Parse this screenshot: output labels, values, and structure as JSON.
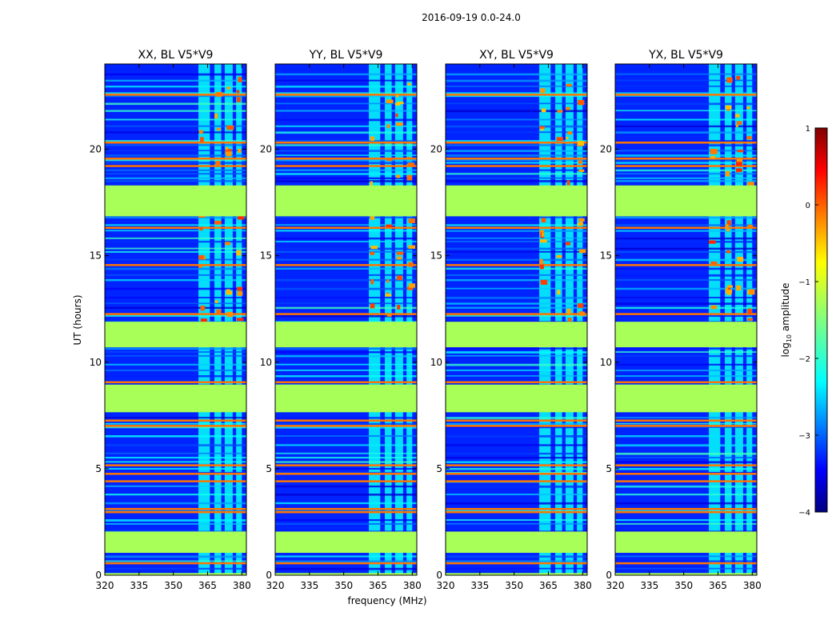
{
  "chart_data": {
    "type": "heatmap",
    "suptitle": "2016-09-19 0.0-24.0",
    "xlabel": "frequency (MHz)",
    "ylabel": "UT (hours)",
    "xlim": [
      320,
      382
    ],
    "ylim": [
      0,
      24
    ],
    "xticks": [
      320,
      335,
      350,
      365,
      380
    ],
    "yticks": [
      0,
      5,
      10,
      15,
      20
    ],
    "panels": [
      {
        "title": "XX, BL V5*V9",
        "pol": "XX"
      },
      {
        "title": "YY, BL V5*V9",
        "pol": "YY"
      },
      {
        "title": "XY, BL V5*V9",
        "pol": "XY"
      },
      {
        "title": "YX, BL V5*V9",
        "pol": "YX"
      }
    ],
    "colorbar": {
      "label": "log10 amplitude",
      "label_main": "log",
      "label_sub": "10",
      "label_tail": " amplitude",
      "range": [
        -4,
        1
      ],
      "ticks": [
        -4,
        -3,
        -2,
        -1,
        0,
        1
      ],
      "tick_labels": [
        "−4",
        "−3",
        "−2",
        "−1",
        "0",
        "1"
      ],
      "colormap": "jet"
    },
    "flagged_time_ranges_hours": [
      [
        0.0,
        0.1
      ],
      [
        1.05,
        2.05
      ],
      [
        7.65,
        8.95
      ],
      [
        10.7,
        11.9
      ],
      [
        16.85,
        18.3
      ]
    ],
    "rfi_frequency_band_mhz": [
      361,
      380
    ],
    "background_log10_amplitude": -3.2,
    "flagged_log10_amplitude": -1.3
  }
}
